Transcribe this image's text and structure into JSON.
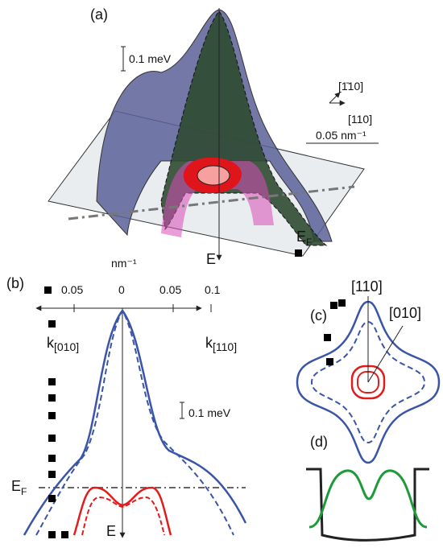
{
  "panel_a": {
    "label": "(a)",
    "scale": "0.1 meV",
    "dir1": "[1̄10]",
    "dir2": "[110]",
    "kscale": "0.05 nm⁻¹",
    "ef": {
      "main": "E",
      "sub": "F"
    },
    "energy": "E"
  },
  "panel_b": {
    "label": "(b)",
    "unit": "nm⁻¹",
    "ticks": [
      "0.05",
      "0",
      "0.05",
      "0.1"
    ],
    "kleft": {
      "main": "k",
      "sub": "[010]"
    },
    "kright": {
      "main": "k",
      "sub": "[110]"
    },
    "scale": "0.1 meV",
    "ef": {
      "main": "E",
      "sub": "F"
    },
    "energy": "E"
  },
  "panel_c": {
    "label": "(c)",
    "dir1": "[110]",
    "dir2": "[010]"
  },
  "panel_d": {
    "label": "(d)"
  }
}
